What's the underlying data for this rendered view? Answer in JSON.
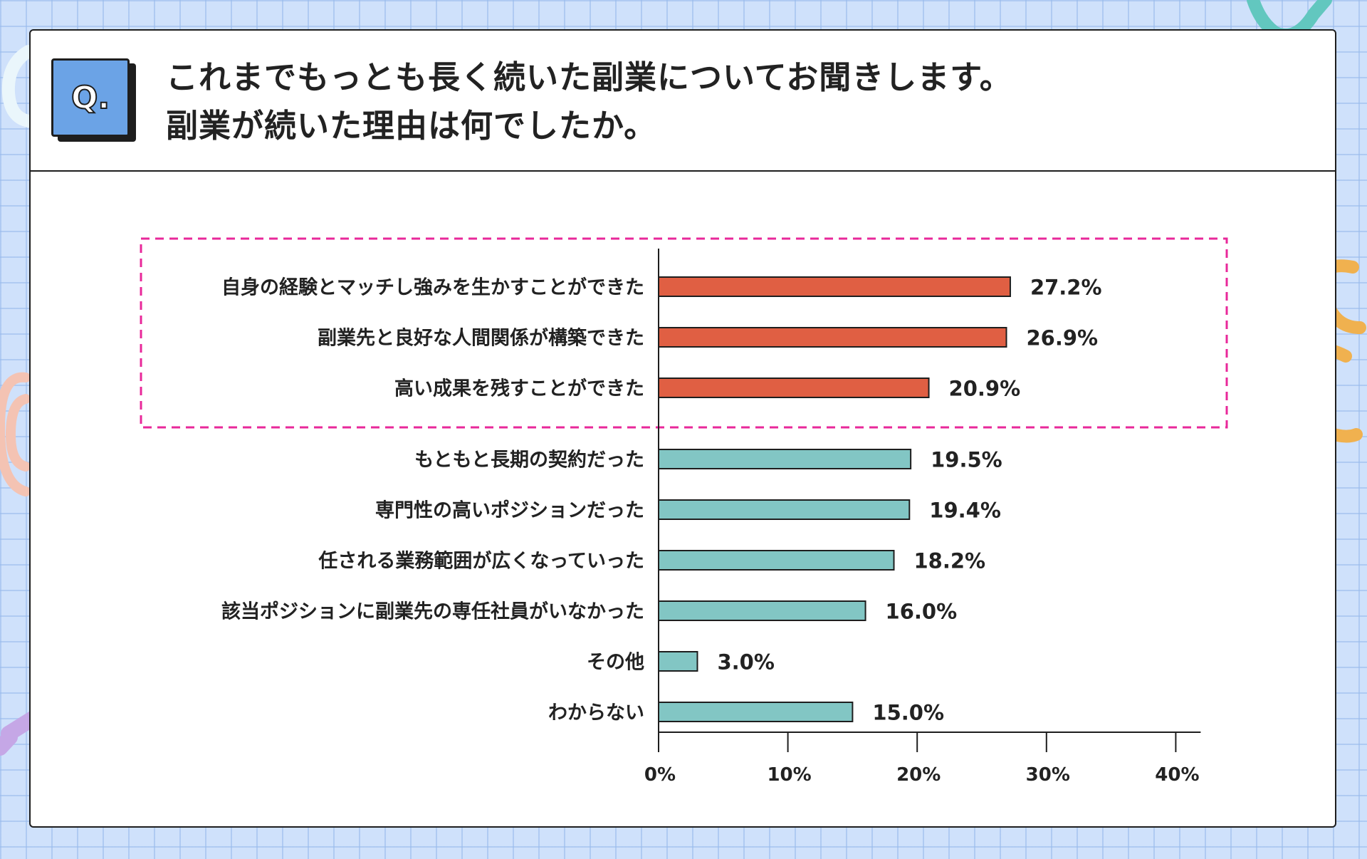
{
  "question": {
    "badge": "Q.",
    "title_line1": "これまでもっとも長く続いた副業についてお聞きします。",
    "title_line2": "副業が続いた理由は何でしたか。"
  },
  "colors": {
    "highlight_bar": "#e05f43",
    "normal_bar": "#82c6c4",
    "highlight_box": "#e8289a",
    "badge": "#6ba3e6"
  },
  "chart_data": {
    "type": "bar",
    "orientation": "horizontal",
    "title": "",
    "xlabel": "",
    "ylabel": "",
    "xlim": [
      0,
      40
    ],
    "grid": false,
    "categories": [
      "自身の経験とマッチし強みを生かすことができた",
      "副業先と良好な人間関係が構築できた",
      "高い成果を残すことができた",
      "もともと長期の契約だった",
      "専門性の高いポジションだった",
      "任される業務範囲が広くなっていった",
      "該当ポジションに副業先の専任社員がいなかった",
      "その他",
      "わからない"
    ],
    "values": [
      27.2,
      26.9,
      20.9,
      19.5,
      19.4,
      18.2,
      16.0,
      3.0,
      15.0
    ],
    "value_labels": [
      "27.2%",
      "26.9%",
      "20.9%",
      "19.5%",
      "19.4%",
      "18.2%",
      "16.0%",
      "3.0%",
      "15.0%"
    ],
    "highlighted": [
      true,
      true,
      true,
      false,
      false,
      false,
      false,
      false,
      false
    ],
    "ticks": [
      0,
      10,
      20,
      30,
      40
    ],
    "tick_labels": [
      "0%",
      "10%",
      "20%",
      "30%",
      "40%"
    ]
  }
}
